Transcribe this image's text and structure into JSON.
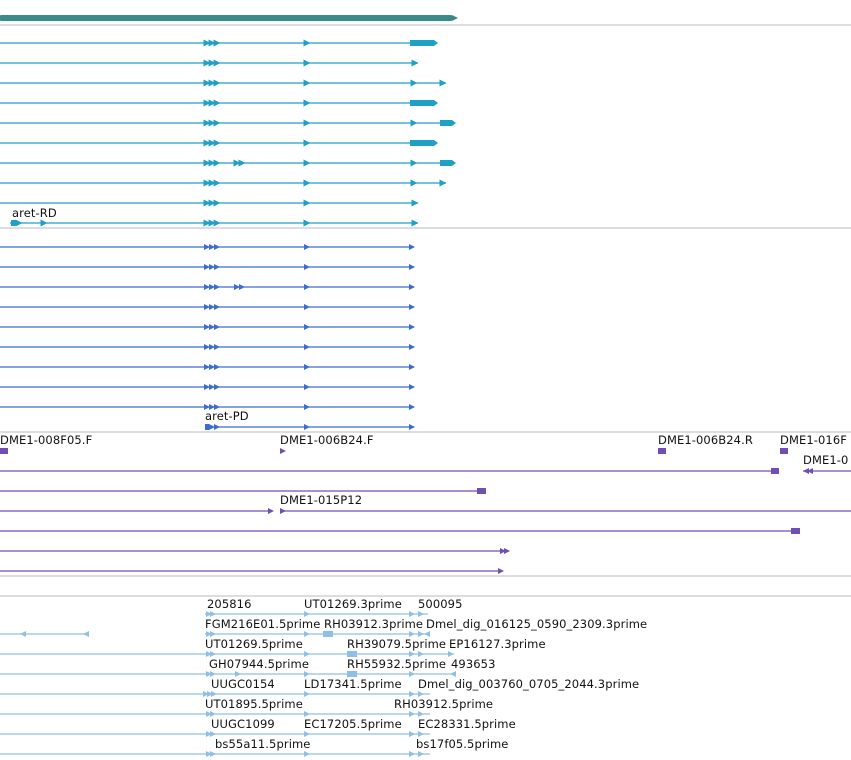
{
  "colors": {
    "gene_bar": "#3a8a8c",
    "transcript": "#1ea1c4",
    "protein": "#3d6bd3",
    "clone": "#6f4fb3",
    "est": "#8fbfe3",
    "separator": "#bbbbbb"
  },
  "tracks": {
    "transcripts": {
      "labels": [
        "aret-RD"
      ]
    },
    "proteins": {
      "labels": [
        "aret-PD"
      ]
    },
    "clones": {
      "labels": [
        "DME1-008F05.F",
        "DME1-006B24.F",
        "DME1-006B24.R",
        "DME1-016F",
        "DME1-0",
        "DME1-015P12"
      ]
    },
    "ests": {
      "labels": [
        "205816",
        "UT01269.3prime",
        "500095",
        "FGM216E01.5prime",
        "RH03912.3prime",
        "Dmel_dig_016125_0590_2309.3prime",
        "UT01269.5prime",
        "RH39079.5prime",
        "EP16127.3prime",
        "GH07944.5prime",
        "RH55932.5prime",
        "493653",
        "UUGC0154",
        "LD17341.5prime",
        "Dmel_dig_003760_0705_2044.3prime",
        "UT01895.5prime",
        "RH03912.5prime",
        "UUGC1099",
        "EC17205.5prime",
        "EC28331.5prime",
        "bs55a11.5prime",
        "bs17f05.5prime"
      ]
    }
  }
}
